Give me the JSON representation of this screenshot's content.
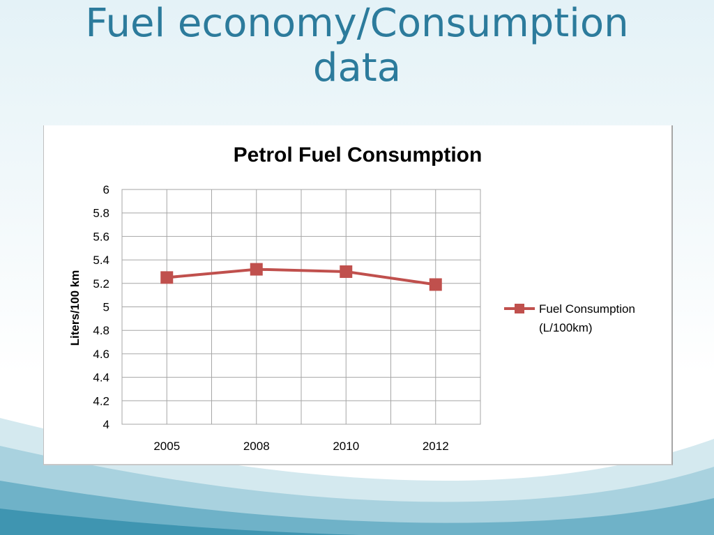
{
  "slide": {
    "title_line1": "Fuel economy/Consumption",
    "title_line2": "data"
  },
  "theme": {
    "title_color": "#2c7b9c",
    "series_color": "#c0504d",
    "grid_color": "#a6a6a6"
  },
  "chart_data": {
    "type": "line",
    "title": "Petrol Fuel Consumption",
    "xlabel": "",
    "ylabel": "Liters/100 km",
    "categories": [
      "2005",
      "2008",
      "2010",
      "2012"
    ],
    "series": [
      {
        "name_line1": "Fuel Consumption",
        "name_line2": "(L/100km)",
        "values": [
          5.25,
          5.32,
          5.3,
          5.19
        ],
        "marker": "square"
      }
    ],
    "ylim": [
      4,
      6
    ],
    "yticks": [
      "6",
      "5.8",
      "5.6",
      "5.4",
      "5.2",
      "5",
      "4.8",
      "4.6",
      "4.4",
      "4.2",
      "4"
    ],
    "grid": true,
    "legend_position": "right"
  }
}
